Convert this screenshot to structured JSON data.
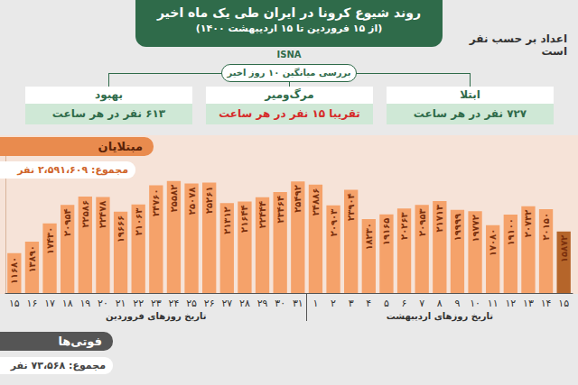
{
  "header": {
    "title": "روند شیوع کرونا در ایران طی یک ماه اخیر",
    "subtitle": "(از ۱۵ فروردین تا ۱۵ اردیبهشت ۱۴۰۰)",
    "source": "ISNA",
    "note": "اعداد بر حسب نفر است"
  },
  "summary": {
    "title": "بررسی میانگین ۱۰ روز اخیر",
    "boxes": [
      {
        "label": "بهبود",
        "text": "۶۱۳ نفر در هر ساعت"
      },
      {
        "label": "مرگ‌ومیر",
        "text": "تقریبا ۱۵ نفر در هر ساعت"
      },
      {
        "label": "ابتلا",
        "text": "۷۲۷ نفر در هر ساعت"
      }
    ]
  },
  "chart_data": {
    "type": "bar",
    "title": "مبتلایان",
    "subtitle": "مجموع: ۲،۵۹۱،۶۰۹ نفر",
    "xlabel": [
      "تاریخ روزهای فروردین",
      "تاریخ روزهای اردیبهشت"
    ],
    "categories": [
      "۱۵",
      "۱۶",
      "۱۷",
      "۱۸",
      "۱۹",
      "۲۰",
      "۲۱",
      "۲۲",
      "۲۳",
      "۲۴",
      "۲۵",
      "۲۶",
      "۲۷",
      "۲۸",
      "۲۹",
      "۳۰",
      "۳۱",
      "۱",
      "۲",
      "۳",
      "۴",
      "۵",
      "۶",
      "۷",
      "۸",
      "۹",
      "۱۰",
      "۱۱",
      "۱۲",
      "۱۳",
      "۱۴",
      "۱۵"
    ],
    "values": [
      11680,
      13890,
      17430,
      20954,
      22586,
      22478,
      19666,
      21063,
      24760,
      25582,
      25078,
      25261,
      21312,
      21644,
      22444,
      23464,
      25492,
      24886,
      20903,
      23904,
      18230,
      19165,
      20263,
      20953,
      21713,
      19999,
      19772,
      17080,
      19100,
      20732,
      20150,
      15872
    ],
    "value_labels": [
      "۱۱۶۸۰",
      "۱۳۸۹۰",
      "۱۷۴۳۰",
      "۲۰۹۵۴",
      "۲۲۵۸۶",
      "۲۲۴۷۸",
      "۱۹۶۶۶",
      "۲۱۰۶۳",
      "۲۴۷۶۰",
      "۲۵۵۸۲",
      "۲۵۰۷۸",
      "۲۵۲۶۱",
      "۲۱۳۱۲",
      "۲۱۶۴۴",
      "۲۲۴۴۴",
      "۲۳۴۶۴",
      "۲۵۴۹۲",
      "۲۴۸۸۶",
      "۲۰۹۰۳",
      "۲۳۹۰۴",
      "۱۸۲۳۰",
      "۱۹۱۶۵",
      "۲۰۲۶۳",
      "۲۰۹۵۳",
      "۲۱۷۱۳",
      "۱۹۹۹۹",
      "۱۹۷۷۲",
      "۱۷۰۸۰",
      "۱۹۱۰۰",
      "۲۰۷۳۲",
      "۲۰۱۵۰",
      "۱۵۸۷۲"
    ],
    "colors": [
      "#f5a26a",
      "#f5a26a",
      "#f5a26a",
      "#f5a26a",
      "#f5a26a",
      "#f5a26a",
      "#f5a26a",
      "#f5a26a",
      "#f5a26a",
      "#f5a26a",
      "#f5a26a",
      "#f5a26a",
      "#f5a26a",
      "#f5a26a",
      "#f5a26a",
      "#f5a26a",
      "#f5a26a",
      "#f5a26a",
      "#f5a26a",
      "#f5a26a",
      "#f5a26a",
      "#f5a26a",
      "#f5a26a",
      "#f5a26a",
      "#f5a26a",
      "#f5a26a",
      "#f5a26a",
      "#f5a26a",
      "#f5a26a",
      "#f5a26a",
      "#f5a26a",
      "#b5652a"
    ],
    "ylim": [
      4000,
      33000
    ],
    "data_labels": true,
    "tick_labels": "x",
    "grid": false
  },
  "deaths": {
    "title": "فوتی‌ها",
    "subtitle": "مجموع: ۷۳،۵۶۸ نفر"
  }
}
